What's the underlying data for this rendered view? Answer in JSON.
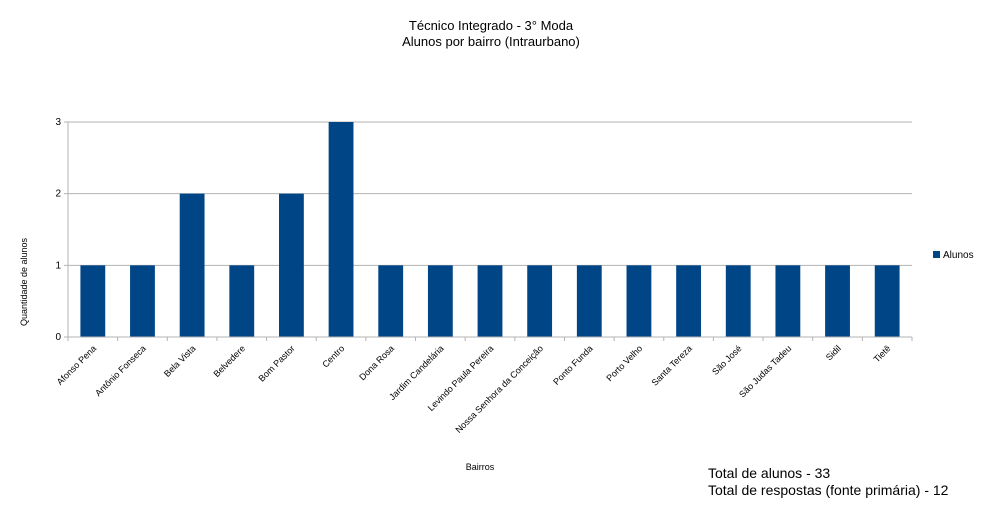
{
  "chart_data": {
    "type": "bar",
    "title": "Técnico Integrado - 3° Moda",
    "subtitle": "Alunos por bairro (Intraurbano)",
    "xlabel": "Bairros",
    "ylabel": "Quantidade de alunos",
    "ylim": [
      0,
      3
    ],
    "yticks": [
      0,
      1,
      2,
      3
    ],
    "grid": true,
    "legend_position": "right",
    "bar_color": "#004586",
    "grid_color": "#b3b3b3",
    "categories": [
      "Afonso Pena",
      "Antônio Fonseca",
      "Bela Vista",
      "Belvedere",
      "Bom Pastor",
      "Centro",
      "Dona Rosa",
      "Jardim Candelária",
      "Levindo Paula Pereira",
      "Nossa Senhora da Conceição",
      "Ponto Funda",
      "Porto Velho",
      "Santa Tereza",
      "São José",
      "São Judas Tadeu",
      "Sidil",
      "Tietê"
    ],
    "series": [
      {
        "name": "Alunos",
        "values": [
          1,
          1,
          2,
          1,
          2,
          3,
          1,
          1,
          1,
          1,
          1,
          1,
          1,
          1,
          1,
          1,
          1
        ]
      }
    ]
  },
  "notes": {
    "total_alunos": "Total de alunos - 33",
    "total_respostas": "Total de respostas (fonte primária) - 12"
  }
}
